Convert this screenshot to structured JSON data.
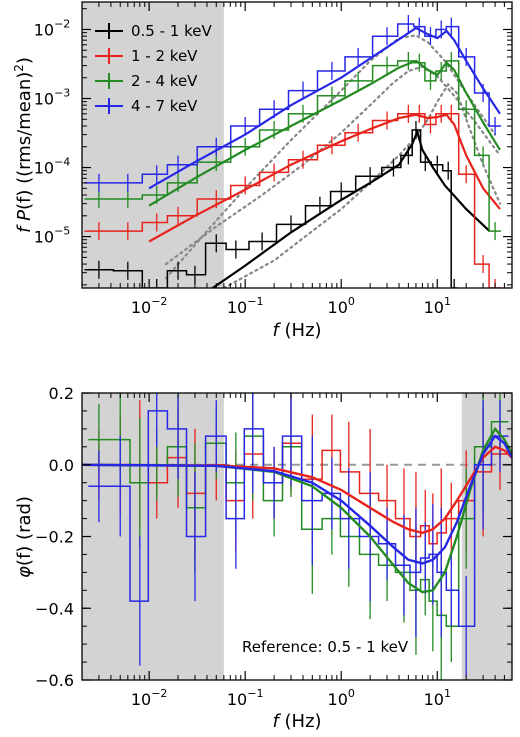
{
  "colors": {
    "0.5-1": "#000000",
    "1-2": "#e8231c",
    "2-4": "#238b22",
    "4-7": "#2727e8",
    "shade": "#d3d3d3",
    "model": "#888888"
  },
  "chart_data": [
    {
      "type": "line",
      "x_scale": "log",
      "y_scale": "log",
      "xlim": [
        0.002,
        60
      ],
      "ylim": [
        1.8e-06,
        0.025
      ],
      "xlabel": "f (Hz)",
      "ylabel": "f P(f)  ((rms/mean)²)",
      "xlabel_parts": {
        "var": "f",
        "unit": " (Hz)"
      },
      "ylabel_parts": {
        "var": "f P",
        "arg": "(f)",
        "unit": " ((rms/mean)",
        "sup": "2",
        "close": ")"
      },
      "x_ticks": [
        {
          "value": 0.01,
          "base": "10",
          "exp": "−2"
        },
        {
          "value": 0.1,
          "base": "10",
          "exp": "−1"
        },
        {
          "value": 1,
          "base": "10",
          "exp": "0"
        },
        {
          "value": 10,
          "base": "10",
          "exp": "1"
        }
      ],
      "y_ticks": [
        {
          "value": 1e-05,
          "base": "10",
          "exp": "−5"
        },
        {
          "value": 0.0001,
          "base": "10",
          "exp": "−4"
        },
        {
          "value": 0.001,
          "base": "10",
          "exp": "−3"
        },
        {
          "value": 0.01,
          "base": "10",
          "exp": "−2"
        }
      ],
      "shaded_x": [
        [
          0.002,
          0.06
        ]
      ],
      "legend_position": "top-left",
      "legend": [
        "0.5 - 1 keV",
        "1 - 2 keV",
        "2 - 4 keV",
        "4 - 7 keV"
      ],
      "series": [
        {
          "name": "0.5 - 1 keV",
          "color_key": "0.5-1",
          "x": [
            0.003,
            0.006,
            0.012,
            0.02,
            0.03,
            0.05,
            0.08,
            0.15,
            0.3,
            0.6,
            1.0,
            2.0,
            3.5,
            5.0,
            6.0,
            7.5,
            10.0,
            13.0,
            15.0
          ],
          "y": [
            3.3e-06,
            3.2e-06,
            1.8e-06,
            3.2e-06,
            2.8e-06,
            8e-06,
            6.5e-06,
            8.5e-06,
            1.5e-05,
            2.8e-05,
            4.5e-05,
            7.5e-05,
            0.0001,
            0.00015,
            0.00035,
            0.00012,
            0.00011,
            9e-05,
            1.8e-06
          ],
          "model_x": [
            0.03,
            0.1,
            0.3,
            1.0,
            2.0,
            4.0,
            5.5,
            6.2,
            7.0,
            9.0,
            12.0,
            20.0,
            35.0
          ],
          "model_y": [
            1.2e-06,
            3.8e-06,
            1.15e-05,
            3.4e-05,
            6e-05,
            0.00011,
            0.00022,
            0.00033,
            0.00018,
            0.0001,
            5.5e-05,
            2.5e-05,
            1.2e-05
          ]
        },
        {
          "name": "1 - 2 keV",
          "color_key": "1-2",
          "x": [
            0.003,
            0.006,
            0.012,
            0.02,
            0.05,
            0.1,
            0.2,
            0.4,
            0.8,
            1.5,
            3.0,
            5.0,
            6.5,
            8.5,
            11.0,
            14.0,
            20.0,
            30.0,
            40.0
          ],
          "y": [
            1.2e-05,
            1.2e-05,
            1.6e-05,
            2e-05,
            3.5e-05,
            5.5e-05,
            8.5e-05,
            0.00013,
            0.00021,
            0.00032,
            0.00048,
            0.0006,
            0.0006,
            0.00042,
            0.0006,
            0.0006,
            8e-05,
            4e-06,
            1.8e-06
          ],
          "model_x": [
            0.01,
            0.03,
            0.1,
            0.3,
            1.0,
            2.0,
            4.0,
            6.0,
            8.0,
            10.0,
            12.5,
            15.0,
            20.0,
            30.0,
            45.0
          ],
          "model_y": [
            8.5e-06,
            2e-05,
            4.8e-05,
            0.00011,
            0.00024,
            0.00036,
            0.00052,
            0.00058,
            0.00052,
            0.00054,
            0.00058,
            0.00042,
            0.00015,
            5e-05,
            2.5e-05
          ]
        },
        {
          "name": "2 - 4 keV",
          "color_key": "2-4",
          "x": [
            0.003,
            0.006,
            0.012,
            0.02,
            0.05,
            0.1,
            0.2,
            0.4,
            0.8,
            1.5,
            3.0,
            5.0,
            6.5,
            8.5,
            11.0,
            14.0,
            20.0,
            30.0,
            40.0
          ],
          "y": [
            3.5e-05,
            3.5e-05,
            4e-05,
            6e-05,
            0.00012,
            0.0002,
            0.00035,
            0.0006,
            0.0011,
            0.0018,
            0.003,
            0.0035,
            0.0033,
            0.0018,
            0.0025,
            0.0035,
            0.0007,
            0.00015,
            1.2e-05
          ],
          "model_x": [
            0.01,
            0.03,
            0.1,
            0.3,
            1.0,
            2.0,
            4.0,
            6.0,
            8.0,
            10.0,
            12.5,
            15.0,
            20.0,
            30.0,
            45.0
          ],
          "model_y": [
            2.8e-05,
            7e-05,
            0.00018,
            0.0004,
            0.00095,
            0.0016,
            0.0028,
            0.0035,
            0.0026,
            0.0022,
            0.0033,
            0.0026,
            0.0012,
            0.00045,
            0.00018
          ]
        },
        {
          "name": "4 - 7 keV",
          "color_key": "4-7",
          "x": [
            0.003,
            0.006,
            0.012,
            0.02,
            0.05,
            0.1,
            0.2,
            0.4,
            0.8,
            1.5,
            3.0,
            5.0,
            6.5,
            8.5,
            11.0,
            14.0,
            20.0,
            30.0,
            40.0
          ],
          "y": [
            6e-05,
            6e-05,
            8e-05,
            0.00011,
            0.0002,
            0.0004,
            0.0007,
            0.0013,
            0.0025,
            0.004,
            0.008,
            0.012,
            0.011,
            0.008,
            0.01,
            0.011,
            0.004,
            0.0012,
            0.0004
          ],
          "model_x": [
            0.01,
            0.03,
            0.1,
            0.3,
            1.0,
            2.0,
            4.0,
            6.0,
            8.0,
            10.0,
            12.5,
            15.0,
            20.0,
            30.0,
            45.0
          ],
          "model_y": [
            5e-05,
            0.00012,
            0.0003,
            0.0008,
            0.002,
            0.0038,
            0.0072,
            0.0105,
            0.0085,
            0.0075,
            0.0095,
            0.007,
            0.0035,
            0.0014,
            0.0006
          ]
        }
      ],
      "model_components": [
        {
          "x": [
            0.015,
            0.05,
            0.15,
            0.4,
            1.0,
            2.0,
            3.5,
            5.0,
            7.0,
            10.0,
            15.0,
            25.0,
            45.0
          ],
          "y": [
            4e-06,
            1.4e-05,
            4e-05,
            0.00011,
            0.00032,
            0.0008,
            0.0017,
            0.0025,
            0.0029,
            0.0021,
            0.0011,
            0.00045,
            0.00015
          ]
        },
        {
          "x": [
            0.015,
            0.04,
            0.1,
            0.3,
            1.0,
            2.0,
            4.0,
            6.0,
            8.0,
            12.0,
            20.0,
            40.0
          ],
          "y": [
            2.5e-06,
            1.2e-05,
            5e-05,
            0.00025,
            0.0013,
            0.0035,
            0.0075,
            0.0082,
            0.0065,
            0.0035,
            0.0012,
            0.0003
          ]
        },
        {
          "x": [
            0.06,
            0.2,
            0.5,
            1.0,
            2.0,
            4.0,
            6.0,
            8.0,
            10.0,
            13.0,
            16.0,
            20.0,
            30.0,
            45.0
          ],
          "y": [
            1.8e-06,
            4.5e-06,
            1.2e-05,
            2.5e-05,
            6e-05,
            0.00015,
            0.00028,
            0.0005,
            0.0009,
            0.0016,
            0.0012,
            0.0005,
            0.00011,
            3e-05
          ]
        }
      ]
    },
    {
      "type": "line",
      "x_scale": "log",
      "y_scale": "linear",
      "xlim": [
        0.002,
        60
      ],
      "ylim": [
        -0.6,
        0.2
      ],
      "xlabel": "f (Hz)",
      "ylabel": "φ(f) (rad)",
      "xlabel_parts": {
        "var": "f",
        "unit": " (Hz)"
      },
      "ylabel_parts": {
        "var": "φ",
        "arg": "(f)",
        "unit": " (rad)"
      },
      "x_ticks": [
        {
          "value": 0.01,
          "base": "10",
          "exp": "−2"
        },
        {
          "value": 0.1,
          "base": "10",
          "exp": "−1"
        },
        {
          "value": 1,
          "base": "10",
          "exp": "0"
        },
        {
          "value": 10,
          "base": "10",
          "exp": "1"
        }
      ],
      "y_ticks": [
        {
          "value": 0.2,
          "label": "0.2"
        },
        {
          "value": 0.0,
          "label": "0.0"
        },
        {
          "value": -0.2,
          "label": "−0.2"
        },
        {
          "value": -0.4,
          "label": "−0.4"
        },
        {
          "value": -0.6,
          "label": "−0.6"
        }
      ],
      "shaded_x": [
        [
          0.002,
          0.06
        ],
        [
          18,
          60
        ]
      ],
      "reference_line": 0,
      "annotation": "Reference: 0.5 - 1 keV",
      "series": [
        {
          "name": "1 - 2 keV",
          "color_key": "1-2",
          "x": [
            0.003,
            0.005,
            0.008,
            0.012,
            0.02,
            0.03,
            0.05,
            0.08,
            0.12,
            0.2,
            0.3,
            0.5,
            0.8,
            1.2,
            2.0,
            3.0,
            4.5,
            6.0,
            7.5,
            9.0,
            11.0,
            14.0,
            20.0,
            30.0,
            45.0
          ],
          "y": [
            0.0,
            0.0,
            0.0,
            -0.05,
            0.02,
            -0.08,
            0.0,
            -0.1,
            0.03,
            -0.05,
            0.06,
            -0.04,
            0.04,
            -0.02,
            -0.08,
            -0.1,
            -0.15,
            -0.2,
            -0.17,
            -0.22,
            -0.19,
            -0.15,
            -0.1,
            -0.02,
            0.03
          ]
        },
        {
          "name": "2 - 4 keV",
          "color_key": "2-4",
          "x": [
            0.003,
            0.005,
            0.008,
            0.012,
            0.02,
            0.03,
            0.05,
            0.08,
            0.12,
            0.2,
            0.3,
            0.5,
            0.8,
            1.2,
            2.0,
            3.0,
            4.5,
            6.0,
            7.5,
            9.0,
            11.0,
            14.0,
            20.0,
            30.0,
            45.0
          ],
          "y": [
            0.07,
            0.07,
            -0.05,
            0.0,
            0.05,
            -0.12,
            0.06,
            -0.05,
            0.08,
            -0.1,
            0.05,
            -0.18,
            -0.15,
            -0.2,
            -0.25,
            -0.28,
            -0.3,
            -0.35,
            -0.32,
            -0.38,
            -0.42,
            -0.45,
            -0.15,
            0.05,
            0.12
          ]
        },
        {
          "name": "4 - 7 keV",
          "color_key": "4-7",
          "x": [
            0.003,
            0.005,
            0.008,
            0.012,
            0.02,
            0.03,
            0.05,
            0.08,
            0.12,
            0.2,
            0.3,
            0.5,
            0.8,
            1.2,
            2.0,
            3.0,
            4.5,
            6.0,
            7.5,
            9.0,
            11.0,
            14.0,
            20.0,
            30.0,
            45.0
          ],
          "y": [
            -0.06,
            -0.06,
            -0.38,
            0.15,
            0.1,
            -0.2,
            0.08,
            -0.15,
            0.1,
            -0.05,
            0.08,
            -0.1,
            -0.08,
            -0.15,
            -0.2,
            -0.22,
            -0.28,
            -0.3,
            -0.26,
            -0.25,
            -0.3,
            -0.35,
            -0.45,
            0.0,
            0.08
          ]
        }
      ],
      "models": [
        {
          "color_key": "1-2",
          "x": [
            0.002,
            0.05,
            0.2,
            0.5,
            1.0,
            2.0,
            3.5,
            5.0,
            7.0,
            9.0,
            12.0,
            16.0,
            22.0,
            30.0,
            40.0,
            50.0,
            60.0
          ],
          "y": [
            0.0,
            -0.002,
            -0.01,
            -0.035,
            -0.07,
            -0.12,
            -0.16,
            -0.18,
            -0.19,
            -0.18,
            -0.15,
            -0.1,
            -0.04,
            0.02,
            0.05,
            0.04,
            0.02
          ]
        },
        {
          "color_key": "2-4",
          "x": [
            0.002,
            0.05,
            0.2,
            0.5,
            1.0,
            2.0,
            3.5,
            5.0,
            7.0,
            9.0,
            12.0,
            16.0,
            22.0,
            30.0,
            40.0,
            50.0,
            60.0
          ],
          "y": [
            0.0,
            -0.003,
            -0.02,
            -0.06,
            -0.12,
            -0.2,
            -0.28,
            -0.33,
            -0.355,
            -0.35,
            -0.3,
            -0.2,
            -0.07,
            0.04,
            0.1,
            0.07,
            0.03
          ]
        },
        {
          "color_key": "4-7",
          "x": [
            0.002,
            0.05,
            0.2,
            0.5,
            1.0,
            2.0,
            3.5,
            5.0,
            7.0,
            9.0,
            12.0,
            16.0,
            22.0,
            30.0,
            40.0,
            50.0,
            60.0
          ],
          "y": [
            0.0,
            -0.003,
            -0.018,
            -0.05,
            -0.1,
            -0.17,
            -0.23,
            -0.265,
            -0.275,
            -0.265,
            -0.23,
            -0.16,
            -0.06,
            0.03,
            0.08,
            0.06,
            0.02
          ]
        }
      ]
    }
  ]
}
